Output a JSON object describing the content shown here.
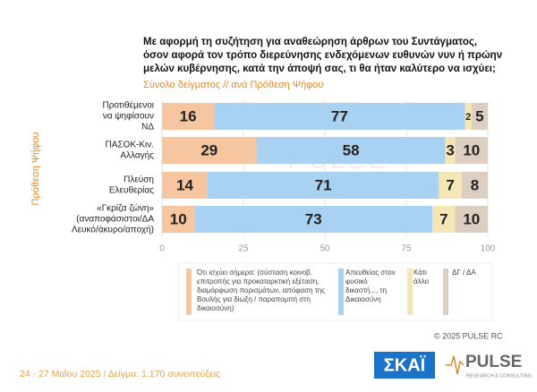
{
  "chart_data": {
    "type": "stacked-bar-horizontal",
    "title": [
      "Με αφορμή τη συζήτηση για αναθεώρηση άρθρων του Συντάγματος,",
      "όσον αφορά τον τρόπο διερεύνησης ενδεχόμενων ευθυνών νυν ή πρώην",
      "μελών κυβέρνησης, κατά την άποψή σας, τι θα ήταν καλύτερο να ισχύει;"
    ],
    "subtitle": "Σύνολο δείγματος // ανά Πρόθεση Ψήφου",
    "y_label": "Πρόθεση Ψήφου",
    "watermark": "PULSE",
    "categories": [
      [
        "Προτιθέμενοι",
        "να ψηφίσουν",
        "ΝΔ"
      ],
      [
        "ΠΑΣΟΚ-Κιν.",
        "Αλλαγής"
      ],
      [
        "Πλεύση",
        "Ελευθερίας"
      ],
      [
        "«Γκρίζα ζώνη»",
        "(αναποφάσιστοι/ΔΑ",
        "Λευκό/άκυρο/αποχή)"
      ]
    ],
    "series": [
      {
        "name": "Ότι ισχύει σήμερα: (σύσταση κοινοβ. επιτροπής για προκαταρκτική εξέταση, διαμόρφωση πορισμάτων, απόφαση της Βουλής για δίωξη / παραπομπή στη δικαιοσύνη)",
        "color": "#f6c6a0",
        "values": [
          16,
          29,
          14,
          10
        ]
      },
      {
        "name": "Απευθείας στον φυσικό δικαστή..., τη Δικαιοσύνη",
        "color": "#a9d2f2",
        "values": [
          77,
          58,
          71,
          73
        ]
      },
      {
        "name": "Κάτι άλλο",
        "color": "#f5e7b5",
        "values": [
          2,
          3,
          7,
          7
        ]
      },
      {
        "name": "ΔΓ / ΔΑ",
        "color": "#dccfc2",
        "values": [
          5,
          10,
          8,
          10
        ]
      }
    ],
    "xlim": [
      0,
      100
    ],
    "xticks": [
      0,
      25,
      50,
      75,
      100
    ],
    "grid": true,
    "copyright": "© 2025 PULSE RC",
    "footer": "24 - 27 Μαΐου 2025  /  Δείγμα:  1.170 συνεντεύξεις",
    "logo_left": "ΣΚΑΪ",
    "logo_right": "PULSE",
    "logo_right_sub": "RESEARCH & CONSULTING"
  }
}
